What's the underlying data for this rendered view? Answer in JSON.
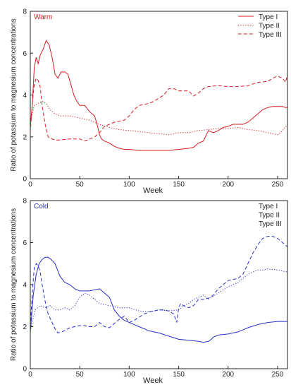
{
  "chart_data": [
    {
      "type": "line",
      "panel_label": "Warm",
      "color": "#d41c24",
      "xlabel": "Week",
      "ylabel": "Ratio of potassium to magnesium concentrations",
      "xlim": [
        0,
        260
      ],
      "ylim": [
        0,
        8
      ],
      "xticks": [
        0,
        50,
        100,
        150,
        200,
        250
      ],
      "yticks": [
        0,
        2,
        4,
        6,
        8
      ],
      "grid": false,
      "legend_position": "top-right",
      "series": [
        {
          "name": "Type I",
          "line_style": "solid",
          "x": [
            0,
            2,
            4,
            6,
            8,
            10,
            13,
            16,
            19,
            22,
            25,
            28,
            31,
            35,
            38,
            41,
            44,
            47,
            50,
            55,
            60,
            65,
            68,
            70,
            72,
            75,
            80,
            85,
            90,
            95,
            100,
            110,
            120,
            130,
            140,
            150,
            160,
            165,
            170,
            175,
            178,
            180,
            185,
            190,
            195,
            200,
            205,
            210,
            215,
            220,
            225,
            230,
            235,
            240,
            245,
            250,
            255,
            258,
            260
          ],
          "y": [
            2.5,
            3.5,
            5.3,
            5.8,
            5.5,
            5.9,
            6.2,
            6.6,
            6.4,
            5.8,
            5.0,
            4.8,
            5.1,
            5.1,
            5.0,
            4.5,
            4.0,
            3.7,
            3.5,
            3.5,
            3.2,
            3.0,
            2.5,
            2.1,
            1.9,
            1.8,
            1.7,
            1.55,
            1.45,
            1.4,
            1.4,
            1.35,
            1.35,
            1.35,
            1.35,
            1.4,
            1.45,
            1.5,
            1.7,
            1.8,
            2.1,
            2.3,
            2.2,
            2.3,
            2.45,
            2.5,
            2.6,
            2.6,
            2.6,
            2.7,
            2.9,
            3.1,
            3.3,
            3.4,
            3.45,
            3.45,
            3.45,
            3.4,
            3.4
          ]
        },
        {
          "name": "Type II",
          "line_style": "dotted",
          "x": [
            0,
            4,
            8,
            12,
            16,
            20,
            25,
            30,
            40,
            50,
            60,
            70,
            80,
            90,
            100,
            110,
            120,
            130,
            140,
            150,
            160,
            170,
            180,
            190,
            195,
            200,
            210,
            220,
            230,
            240,
            245,
            250,
            255,
            258,
            260
          ],
          "y": [
            2.7,
            3.5,
            3.6,
            3.7,
            3.6,
            3.3,
            3.1,
            3.0,
            3.0,
            2.9,
            2.8,
            2.6,
            2.45,
            2.35,
            2.3,
            2.25,
            2.2,
            2.15,
            2.1,
            2.2,
            2.2,
            2.3,
            2.35,
            2.4,
            2.4,
            2.4,
            2.45,
            2.35,
            2.3,
            2.2,
            2.15,
            2.1,
            2.3,
            2.5,
            2.5
          ]
        },
        {
          "name": "Type III",
          "line_style": "dashed",
          "x": [
            0,
            2,
            4,
            6,
            8,
            10,
            12,
            15,
            18,
            22,
            25,
            30,
            40,
            50,
            55,
            60,
            65,
            70,
            75,
            80,
            85,
            90,
            95,
            100,
            105,
            110,
            115,
            120,
            125,
            130,
            135,
            140,
            145,
            150,
            155,
            160,
            165,
            170,
            175,
            180,
            190,
            200,
            210,
            220,
            230,
            240,
            245,
            250,
            255,
            258,
            260
          ],
          "y": [
            2.2,
            3.6,
            4.5,
            4.8,
            4.7,
            4.4,
            3.5,
            2.6,
            2.0,
            1.9,
            1.85,
            1.85,
            1.9,
            1.9,
            1.8,
            1.9,
            2.0,
            2.2,
            2.5,
            2.6,
            2.7,
            2.75,
            2.8,
            3.0,
            3.3,
            3.5,
            3.55,
            3.6,
            3.7,
            3.85,
            4.0,
            4.3,
            4.3,
            4.2,
            4.2,
            4.2,
            3.95,
            4.1,
            4.3,
            4.4,
            4.45,
            4.4,
            4.4,
            4.45,
            4.6,
            4.65,
            4.8,
            4.9,
            4.8,
            4.6,
            5.0
          ]
        }
      ]
    },
    {
      "type": "line",
      "panel_label": "Cold",
      "color": "#2b2fc8",
      "xlabel": "Week",
      "ylabel": "Ratio of potassium to magnesium concentrations",
      "xlim": [
        0,
        260
      ],
      "ylim": [
        0,
        8
      ],
      "xticks": [
        0,
        50,
        100,
        150,
        200,
        250
      ],
      "yticks": [
        0,
        2,
        4,
        6,
        8
      ],
      "grid": false,
      "legend_position": "top-right",
      "series": [
        {
          "name": "Type I",
          "line_style": "solid",
          "x": [
            0,
            3,
            6,
            9,
            12,
            15,
            18,
            21,
            25,
            30,
            35,
            40,
            45,
            50,
            60,
            70,
            75,
            80,
            85,
            90,
            95,
            100,
            110,
            120,
            130,
            140,
            150,
            160,
            170,
            175,
            180,
            183,
            185,
            190,
            200,
            210,
            220,
            230,
            240,
            250,
            255,
            260
          ],
          "y": [
            1.7,
            3.5,
            4.5,
            5.0,
            5.2,
            5.3,
            5.3,
            5.2,
            5.0,
            4.4,
            4.1,
            4.0,
            3.8,
            3.7,
            3.7,
            3.8,
            3.6,
            3.4,
            2.8,
            2.5,
            2.3,
            2.2,
            2.0,
            1.8,
            1.7,
            1.55,
            1.4,
            1.35,
            1.3,
            1.25,
            1.3,
            1.4,
            1.5,
            1.6,
            1.65,
            1.75,
            1.95,
            2.1,
            2.2,
            2.25,
            2.25,
            2.25
          ]
        },
        {
          "name": "Type II",
          "line_style": "dotted",
          "x": [
            0,
            5,
            10,
            15,
            20,
            25,
            30,
            35,
            40,
            45,
            50,
            55,
            60,
            70,
            80,
            90,
            100,
            110,
            120,
            130,
            140,
            150,
            155,
            160,
            165,
            170,
            175,
            180,
            190,
            200,
            210,
            215,
            220,
            225,
            230,
            235,
            240,
            250,
            260
          ],
          "y": [
            1.8,
            2.8,
            3.0,
            2.9,
            3.0,
            2.8,
            2.8,
            2.9,
            2.8,
            3.0,
            3.4,
            3.6,
            3.5,
            3.1,
            3.0,
            2.9,
            2.9,
            2.75,
            2.7,
            2.8,
            2.75,
            2.8,
            3.0,
            3.1,
            3.3,
            3.4,
            3.5,
            3.3,
            3.6,
            3.9,
            4.1,
            4.3,
            4.5,
            4.6,
            4.7,
            4.7,
            4.75,
            4.7,
            4.6
          ]
        },
        {
          "name": "Type III",
          "line_style": "dashed",
          "x": [
            0,
            2,
            4,
            6,
            8,
            10,
            12,
            15,
            18,
            22,
            25,
            28,
            32,
            36,
            40,
            45,
            50,
            55,
            60,
            65,
            70,
            75,
            80,
            85,
            90,
            95,
            100,
            105,
            110,
            115,
            120,
            125,
            130,
            135,
            140,
            145,
            148,
            150,
            152,
            155,
            160,
            165,
            170,
            175,
            180,
            185,
            190,
            200,
            210,
            215,
            220,
            225,
            230,
            235,
            240,
            245,
            250,
            255,
            260
          ],
          "y": [
            2.0,
            3.6,
            4.8,
            5.0,
            4.9,
            4.6,
            4.0,
            3.2,
            2.6,
            2.2,
            1.9,
            1.7,
            1.75,
            1.85,
            1.95,
            2.0,
            2.05,
            2.05,
            2.0,
            2.0,
            2.2,
            2.0,
            1.95,
            2.15,
            2.35,
            2.5,
            2.2,
            2.3,
            2.45,
            2.6,
            2.7,
            2.75,
            2.8,
            2.8,
            2.75,
            2.6,
            2.2,
            2.9,
            3.1,
            3.0,
            2.9,
            3.0,
            3.3,
            3.3,
            3.35,
            3.5,
            3.8,
            4.2,
            4.3,
            4.5,
            5.0,
            5.5,
            5.9,
            6.2,
            6.3,
            6.3,
            6.2,
            6.0,
            5.8
          ]
        }
      ]
    }
  ]
}
